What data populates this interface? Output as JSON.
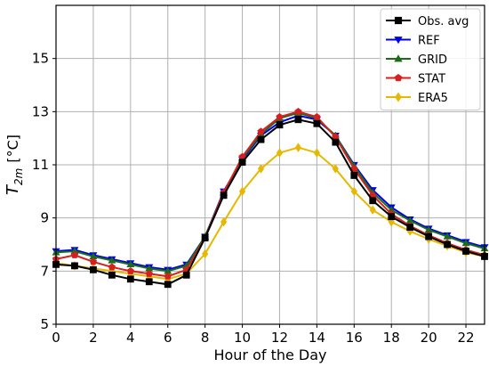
{
  "chart_data": {
    "type": "line",
    "xlabel": "Hour of the Day",
    "ylabel_main": "T",
    "ylabel_sub": "2m",
    "ylabel_unit": "[°C]",
    "xlim": [
      0,
      23
    ],
    "ylim": [
      5,
      17
    ],
    "xticks": [
      0,
      2,
      4,
      6,
      8,
      10,
      12,
      14,
      16,
      18,
      20,
      22
    ],
    "yticks": [
      5,
      7,
      9,
      11,
      13,
      15
    ],
    "grid": true,
    "legend_position": "top-right",
    "x": [
      0,
      1,
      2,
      3,
      4,
      5,
      6,
      7,
      8,
      9,
      10,
      11,
      12,
      13,
      14,
      15,
      16,
      17,
      18,
      19,
      20,
      21,
      22,
      23
    ],
    "series": [
      {
        "name": "ERA5",
        "color": "#e6b800",
        "marker": "diamond",
        "values": [
          7.3,
          7.2,
          7.1,
          7.0,
          6.9,
          6.8,
          6.7,
          6.9,
          7.65,
          8.85,
          10.0,
          10.85,
          11.45,
          11.65,
          11.45,
          10.85,
          10.0,
          9.3,
          8.85,
          8.5,
          8.2,
          7.95,
          7.7,
          7.55
        ]
      },
      {
        "name": "REF",
        "color": "#0000e6",
        "marker": "triangle-down",
        "values": [
          7.75,
          7.8,
          7.6,
          7.45,
          7.3,
          7.15,
          7.05,
          7.25,
          8.3,
          10.0,
          11.2,
          12.1,
          12.6,
          12.85,
          12.7,
          12.1,
          11.0,
          10.05,
          9.4,
          8.95,
          8.6,
          8.35,
          8.1,
          7.9
        ]
      },
      {
        "name": "GRID",
        "color": "#1a6b1a",
        "marker": "triangle-up",
        "values": [
          7.7,
          7.75,
          7.55,
          7.4,
          7.25,
          7.1,
          7.0,
          7.2,
          8.3,
          9.95,
          11.25,
          12.15,
          12.75,
          12.95,
          12.75,
          12.1,
          10.95,
          9.95,
          9.3,
          8.9,
          8.55,
          8.3,
          8.05,
          7.85
        ]
      },
      {
        "name": "STAT",
        "color": "#d62020",
        "marker": "pentagon",
        "values": [
          7.45,
          7.6,
          7.35,
          7.15,
          7.0,
          6.9,
          6.8,
          7.05,
          8.25,
          9.95,
          11.3,
          12.25,
          12.8,
          13.0,
          12.8,
          12.05,
          10.85,
          9.85,
          9.15,
          8.7,
          8.35,
          8.05,
          7.8,
          7.6
        ]
      },
      {
        "name": "Obs. avg",
        "color": "#000000",
        "marker": "square",
        "values": [
          7.25,
          7.2,
          7.05,
          6.85,
          6.7,
          6.6,
          6.5,
          6.85,
          8.25,
          9.85,
          11.1,
          11.95,
          12.5,
          12.7,
          12.55,
          11.85,
          10.6,
          9.65,
          9.05,
          8.65,
          8.3,
          8.0,
          7.75,
          7.55
        ]
      }
    ],
    "legend_order": [
      "Obs. avg",
      "REF",
      "GRID",
      "STAT",
      "ERA5"
    ]
  }
}
